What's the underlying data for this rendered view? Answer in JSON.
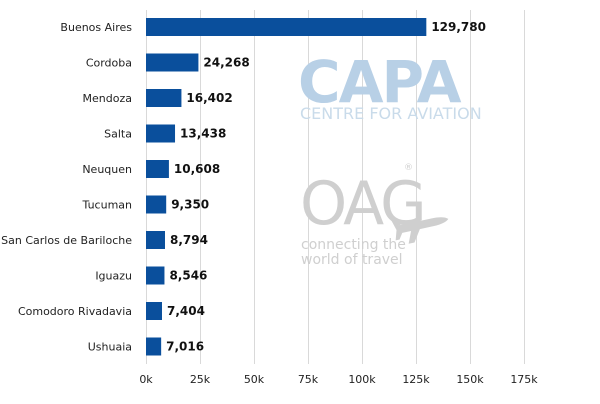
{
  "chart_data": {
    "type": "bar",
    "orientation": "horizontal",
    "categories": [
      "Buenos Aires",
      "Cordoba",
      "Mendoza",
      "Salta",
      "Neuquen",
      "Tucuman",
      "San Carlos de Bariloche",
      "Iguazu",
      "Comodoro Rivadavia",
      "Ushuaia"
    ],
    "values": [
      129780,
      24268,
      16402,
      13438,
      10608,
      9350,
      8794,
      8546,
      7404,
      7016
    ],
    "value_labels": [
      "129,780",
      "24,268",
      "16,402",
      "13,438",
      "10,608",
      "9,350",
      "8,794",
      "8,546",
      "7,404",
      "7,016"
    ],
    "xlim": [
      0,
      175000
    ],
    "x_ticks": [
      0,
      25000,
      50000,
      75000,
      100000,
      125000,
      150000,
      175000
    ],
    "x_tick_labels": [
      "0k",
      "25k",
      "50k",
      "75k",
      "100k",
      "125k",
      "150k",
      "175k"
    ],
    "grid": "vertical",
    "legend": "none",
    "title": "",
    "xlabel": "",
    "ylabel": "",
    "bar_color": "#0a4f9c"
  },
  "watermarks": {
    "capa": {
      "logo_text": "CAPA",
      "subtitle": "CENTRE FOR AVIATION",
      "color": "#b8d0e6"
    },
    "oag": {
      "logo_text": "OAG",
      "registered_mark": "®",
      "tagline_line1": "connecting the",
      "tagline_line2": "world of travel",
      "color": "#cfcfcf",
      "icon": "airplane-icon"
    }
  }
}
